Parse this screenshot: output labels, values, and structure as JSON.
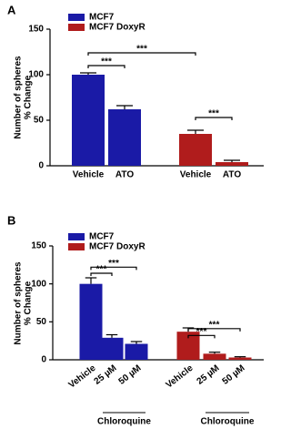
{
  "chart_data": [
    {
      "type": "bar",
      "panel": "A",
      "ylabel": [
        "Number of spheres",
        "% Change"
      ],
      "categories": [
        "Vehicle",
        "ATO",
        "Vehicle",
        "ATO"
      ],
      "series": [
        {
          "name": "MCF7",
          "color": "#1a1aa6",
          "values": [
            100,
            62,
            null,
            null
          ],
          "errors": [
            2,
            4,
            null,
            null
          ]
        },
        {
          "name": "MCF7 DoxyR",
          "color": "#b01c1c",
          "values": [
            null,
            null,
            35,
            4
          ],
          "errors": [
            null,
            null,
            4,
            2
          ]
        }
      ],
      "ylim": [
        0,
        150
      ],
      "yticks": [
        0,
        50,
        100,
        150
      ],
      "annotations": [
        {
          "text": "***"
        },
        {
          "text": "***"
        },
        {
          "text": "***"
        }
      ]
    },
    {
      "type": "bar",
      "panel": "B",
      "ylabel": [
        "Number of spheres",
        "% Change"
      ],
      "categories": [
        "Vehicle",
        "25 µM",
        "50 µM",
        "Vehicle",
        "25 µM",
        "50 µM"
      ],
      "group_labels": [
        "Chloroquine",
        "Chloroquine"
      ],
      "series": [
        {
          "name": "MCF7",
          "color": "#1a1aa6",
          "values": [
            100,
            29,
            21,
            null,
            null,
            null
          ],
          "errors": [
            8,
            4,
            3,
            null,
            null,
            null
          ]
        },
        {
          "name": "MCF7 DoxyR",
          "color": "#b01c1c",
          "values": [
            null,
            null,
            null,
            37,
            8,
            3
          ],
          "errors": [
            null,
            null,
            null,
            5,
            2,
            1
          ]
        }
      ],
      "ylim": [
        0,
        150
      ],
      "yticks": [
        0,
        50,
        100,
        150
      ],
      "annotations": [
        {
          "text": "***"
        },
        {
          "text": "***"
        },
        {
          "text": "***"
        },
        {
          "text": "***"
        }
      ]
    }
  ]
}
